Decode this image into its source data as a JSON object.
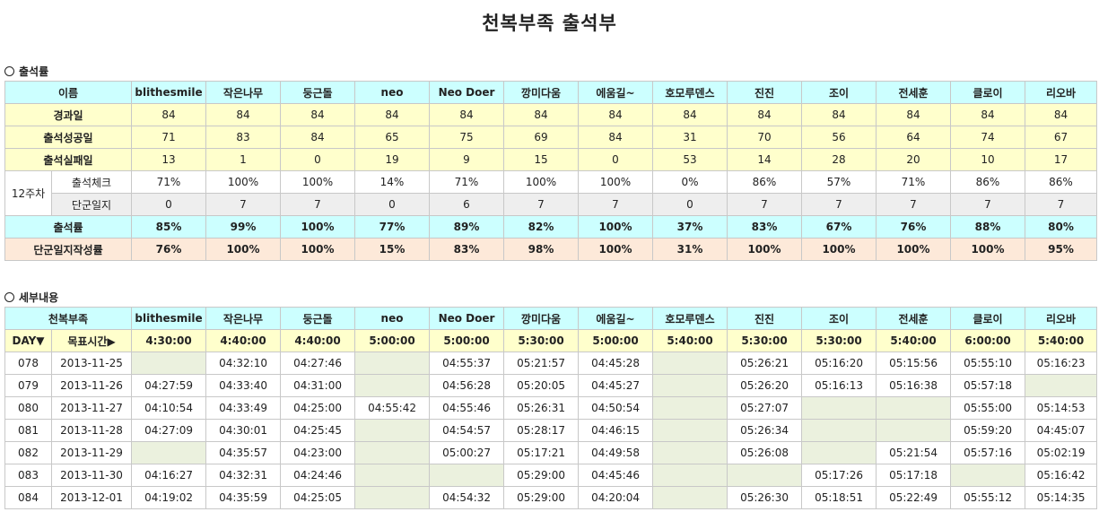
{
  "title": "천복부족 출석부",
  "section1": "출석률",
  "section2": "세부내용",
  "names": [
    "blithesmile",
    "작은나무",
    "둥근돌",
    "neo",
    "Neo Doer",
    "깡미다움",
    "에움길~",
    "호모루덴스",
    "진진",
    "조이",
    "전세훈",
    "클로이",
    "리오바"
  ],
  "summary": {
    "name_label": "이름",
    "elapsed": {
      "label": "경과일",
      "values": [
        "84",
        "84",
        "84",
        "84",
        "84",
        "84",
        "84",
        "84",
        "84",
        "84",
        "84",
        "84",
        "84"
      ]
    },
    "success": {
      "label": "출석성공일",
      "values": [
        "71",
        "83",
        "84",
        "65",
        "75",
        "69",
        "84",
        "31",
        "70",
        "56",
        "64",
        "74",
        "67"
      ]
    },
    "fail": {
      "label": "출석실패일",
      "values": [
        "13",
        "1",
        "0",
        "19",
        "9",
        "15",
        "0",
        "53",
        "14",
        "28",
        "20",
        "10",
        "17"
      ]
    },
    "week_label": "12주차",
    "check": {
      "label": "출석체크",
      "values": [
        "71%",
        "100%",
        "100%",
        "14%",
        "71%",
        "100%",
        "100%",
        "0%",
        "86%",
        "57%",
        "71%",
        "86%",
        "86%"
      ]
    },
    "journal": {
      "label": "단군일지",
      "values": [
        "0",
        "7",
        "7",
        "0",
        "6",
        "7",
        "7",
        "0",
        "7",
        "7",
        "7",
        "7",
        "7"
      ]
    },
    "rate": {
      "label": "출석률",
      "values": [
        "85%",
        "99%",
        "100%",
        "77%",
        "89%",
        "82%",
        "100%",
        "37%",
        "83%",
        "67%",
        "76%",
        "88%",
        "80%"
      ]
    },
    "journal_rate": {
      "label": "단군일지작성률",
      "values": [
        "76%",
        "100%",
        "100%",
        "15%",
        "83%",
        "98%",
        "100%",
        "31%",
        "100%",
        "100%",
        "100%",
        "100%",
        "95%"
      ]
    }
  },
  "detail": {
    "tribe_label": "천복부족",
    "day_label": "DAY▼",
    "target_label": "목표시간▶",
    "targets": [
      "4:30:00",
      "4:40:00",
      "4:40:00",
      "5:00:00",
      "5:00:00",
      "5:30:00",
      "5:00:00",
      "5:40:00",
      "5:30:00",
      "5:30:00",
      "5:40:00",
      "6:00:00",
      "5:40:00"
    ],
    "rows": [
      {
        "day": "078",
        "date": "2013-11-25",
        "times": [
          "",
          "04:32:10",
          "04:27:46",
          "",
          "04:55:37",
          "05:21:57",
          "04:45:28",
          "",
          "05:26:21",
          "05:16:20",
          "05:15:56",
          "05:55:10",
          "05:16:23"
        ]
      },
      {
        "day": "079",
        "date": "2013-11-26",
        "times": [
          "04:27:59",
          "04:33:40",
          "04:31:00",
          "",
          "04:56:28",
          "05:20:05",
          "04:45:27",
          "",
          "05:26:20",
          "05:16:13",
          "05:16:38",
          "05:57:18",
          ""
        ]
      },
      {
        "day": "080",
        "date": "2013-11-27",
        "times": [
          "04:10:54",
          "04:33:49",
          "04:25:00",
          "04:55:42",
          "04:55:46",
          "05:26:31",
          "04:50:54",
          "",
          "05:27:07",
          "",
          "",
          "05:55:00",
          "05:14:53"
        ]
      },
      {
        "day": "081",
        "date": "2013-11-28",
        "times": [
          "04:27:09",
          "04:30:01",
          "04:25:45",
          "",
          "04:54:57",
          "05:28:17",
          "04:46:15",
          "",
          "05:26:34",
          "",
          "",
          "05:59:20",
          "04:45:07"
        ]
      },
      {
        "day": "082",
        "date": "2013-11-29",
        "times": [
          "",
          "04:35:57",
          "04:23:00",
          "",
          "05:00:27",
          "05:17:21",
          "04:49:58",
          "",
          "05:26:08",
          "",
          "05:21:54",
          "05:57:16",
          "05:02:19"
        ]
      },
      {
        "day": "083",
        "date": "2013-11-30",
        "times": [
          "04:16:27",
          "04:32:31",
          "04:24:46",
          "",
          "",
          "05:29:00",
          "04:45:46",
          "",
          "",
          "05:17:26",
          "05:17:18",
          "",
          "05:16:42"
        ]
      },
      {
        "day": "084",
        "date": "2013-12-01",
        "times": [
          "04:19:02",
          "04:35:59",
          "04:25:05",
          "",
          "04:54:32",
          "05:29:00",
          "04:20:04",
          "",
          "05:26:30",
          "05:18:51",
          "05:22:49",
          "05:55:12",
          "05:14:35"
        ]
      }
    ]
  }
}
